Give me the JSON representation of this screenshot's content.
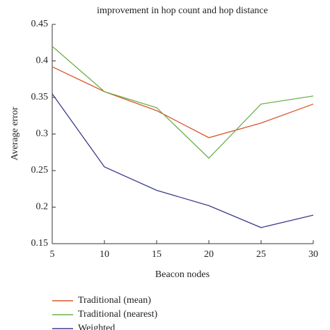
{
  "chart_data": {
    "type": "line",
    "title": "improvement in hop count and hop distance",
    "x_label": "Beacon nodes",
    "y_label": "Average error",
    "x": [
      5,
      10,
      15,
      20,
      25,
      30
    ],
    "series": [
      {
        "name": "Traditional (mean)",
        "color": "#d9542b",
        "values": [
          0.392,
          0.358,
          0.332,
          0.295,
          0.315,
          0.341
        ]
      },
      {
        "name": "Traditional (nearest)",
        "color": "#6ab04c",
        "values": [
          0.42,
          0.358,
          0.336,
          0.267,
          0.341,
          0.352
        ]
      },
      {
        "name": "Weighted",
        "color": "#3a3a8c",
        "values": [
          0.355,
          0.255,
          0.223,
          0.202,
          0.172,
          0.189
        ]
      }
    ],
    "xlim": [
      5,
      30
    ],
    "xticks": [
      5,
      10,
      15,
      20,
      25,
      30
    ],
    "ylim": [
      0.15,
      0.45
    ],
    "yticks": [
      0.45,
      0.4,
      0.35,
      0.3,
      0.25,
      0.2,
      0.15
    ],
    "grid": false
  }
}
